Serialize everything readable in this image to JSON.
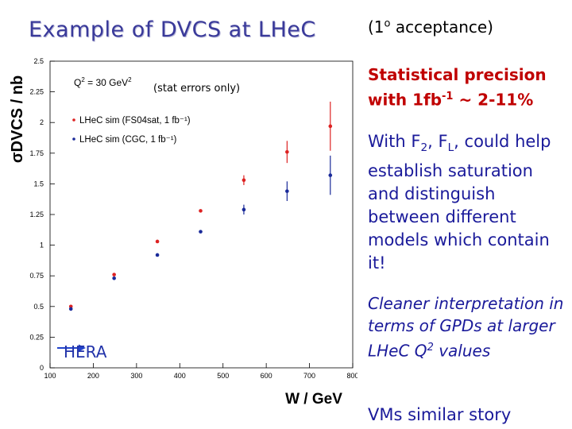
{
  "slide": {
    "title": "Example of DVCS at LHeC",
    "acceptance": {
      "pre": "(1",
      "sup": "o",
      "post": " acceptance)"
    },
    "stat": {
      "line1": "Statistical precision",
      "line2_pre": "with 1fb",
      "line2_sup": "-1",
      "line2_post": " ~ 2-11%"
    },
    "models": {
      "p1": "With F",
      "s1": "2",
      "p2": ", F",
      "s2": "L",
      "p3": ", could help establish saturation and distinguish between different models which contain it!"
    },
    "gpd": {
      "pre": "Cleaner interpretation in terms of GPDs at larger LHeC Q",
      "sup": "2",
      "post": " values"
    },
    "vms": "VMs similar story"
  },
  "chart_data": {
    "type": "scatter",
    "title": "",
    "xlabel": "W / GeV",
    "ylabel": "σDVCS / nb",
    "xlim": [
      100,
      800
    ],
    "ylim": [
      0,
      2.5
    ],
    "xticks": [
      100,
      200,
      300,
      400,
      500,
      600,
      700,
      800
    ],
    "yticks": [
      0,
      0.25,
      0.5,
      0.75,
      1,
      1.25,
      1.5,
      1.75,
      2,
      2.25,
      2.5
    ],
    "annotations": {
      "q2_pre": "Q",
      "q2_sup": "2",
      "q2_mid": " = 30 GeV",
      "q2_sup2": "2",
      "stat_errors": "(stat errors only)",
      "hera": "HERA"
    },
    "legend_position": "top-left",
    "series": [
      {
        "name": "LHeC sim (FS04sat, 1 fb⁻¹)",
        "color": "#dd2222",
        "x": [
          150,
          250,
          350,
          450,
          550,
          650,
          750
        ],
        "y": [
          0.5,
          0.76,
          1.03,
          1.28,
          1.53,
          1.76,
          1.97
        ],
        "err": [
          0.005,
          0.01,
          0.02,
          0.01,
          0.04,
          0.09,
          0.2
        ]
      },
      {
        "name": "LHeC sim (CGC, 1 fb⁻¹)",
        "color": "#1a2a99",
        "x": [
          150,
          250,
          350,
          450,
          550,
          650,
          750
        ],
        "y": [
          0.48,
          0.73,
          0.92,
          1.11,
          1.29,
          1.44,
          1.57
        ],
        "err": [
          0.005,
          0.01,
          0.02,
          0.01,
          0.04,
          0.08,
          0.16
        ]
      }
    ]
  }
}
